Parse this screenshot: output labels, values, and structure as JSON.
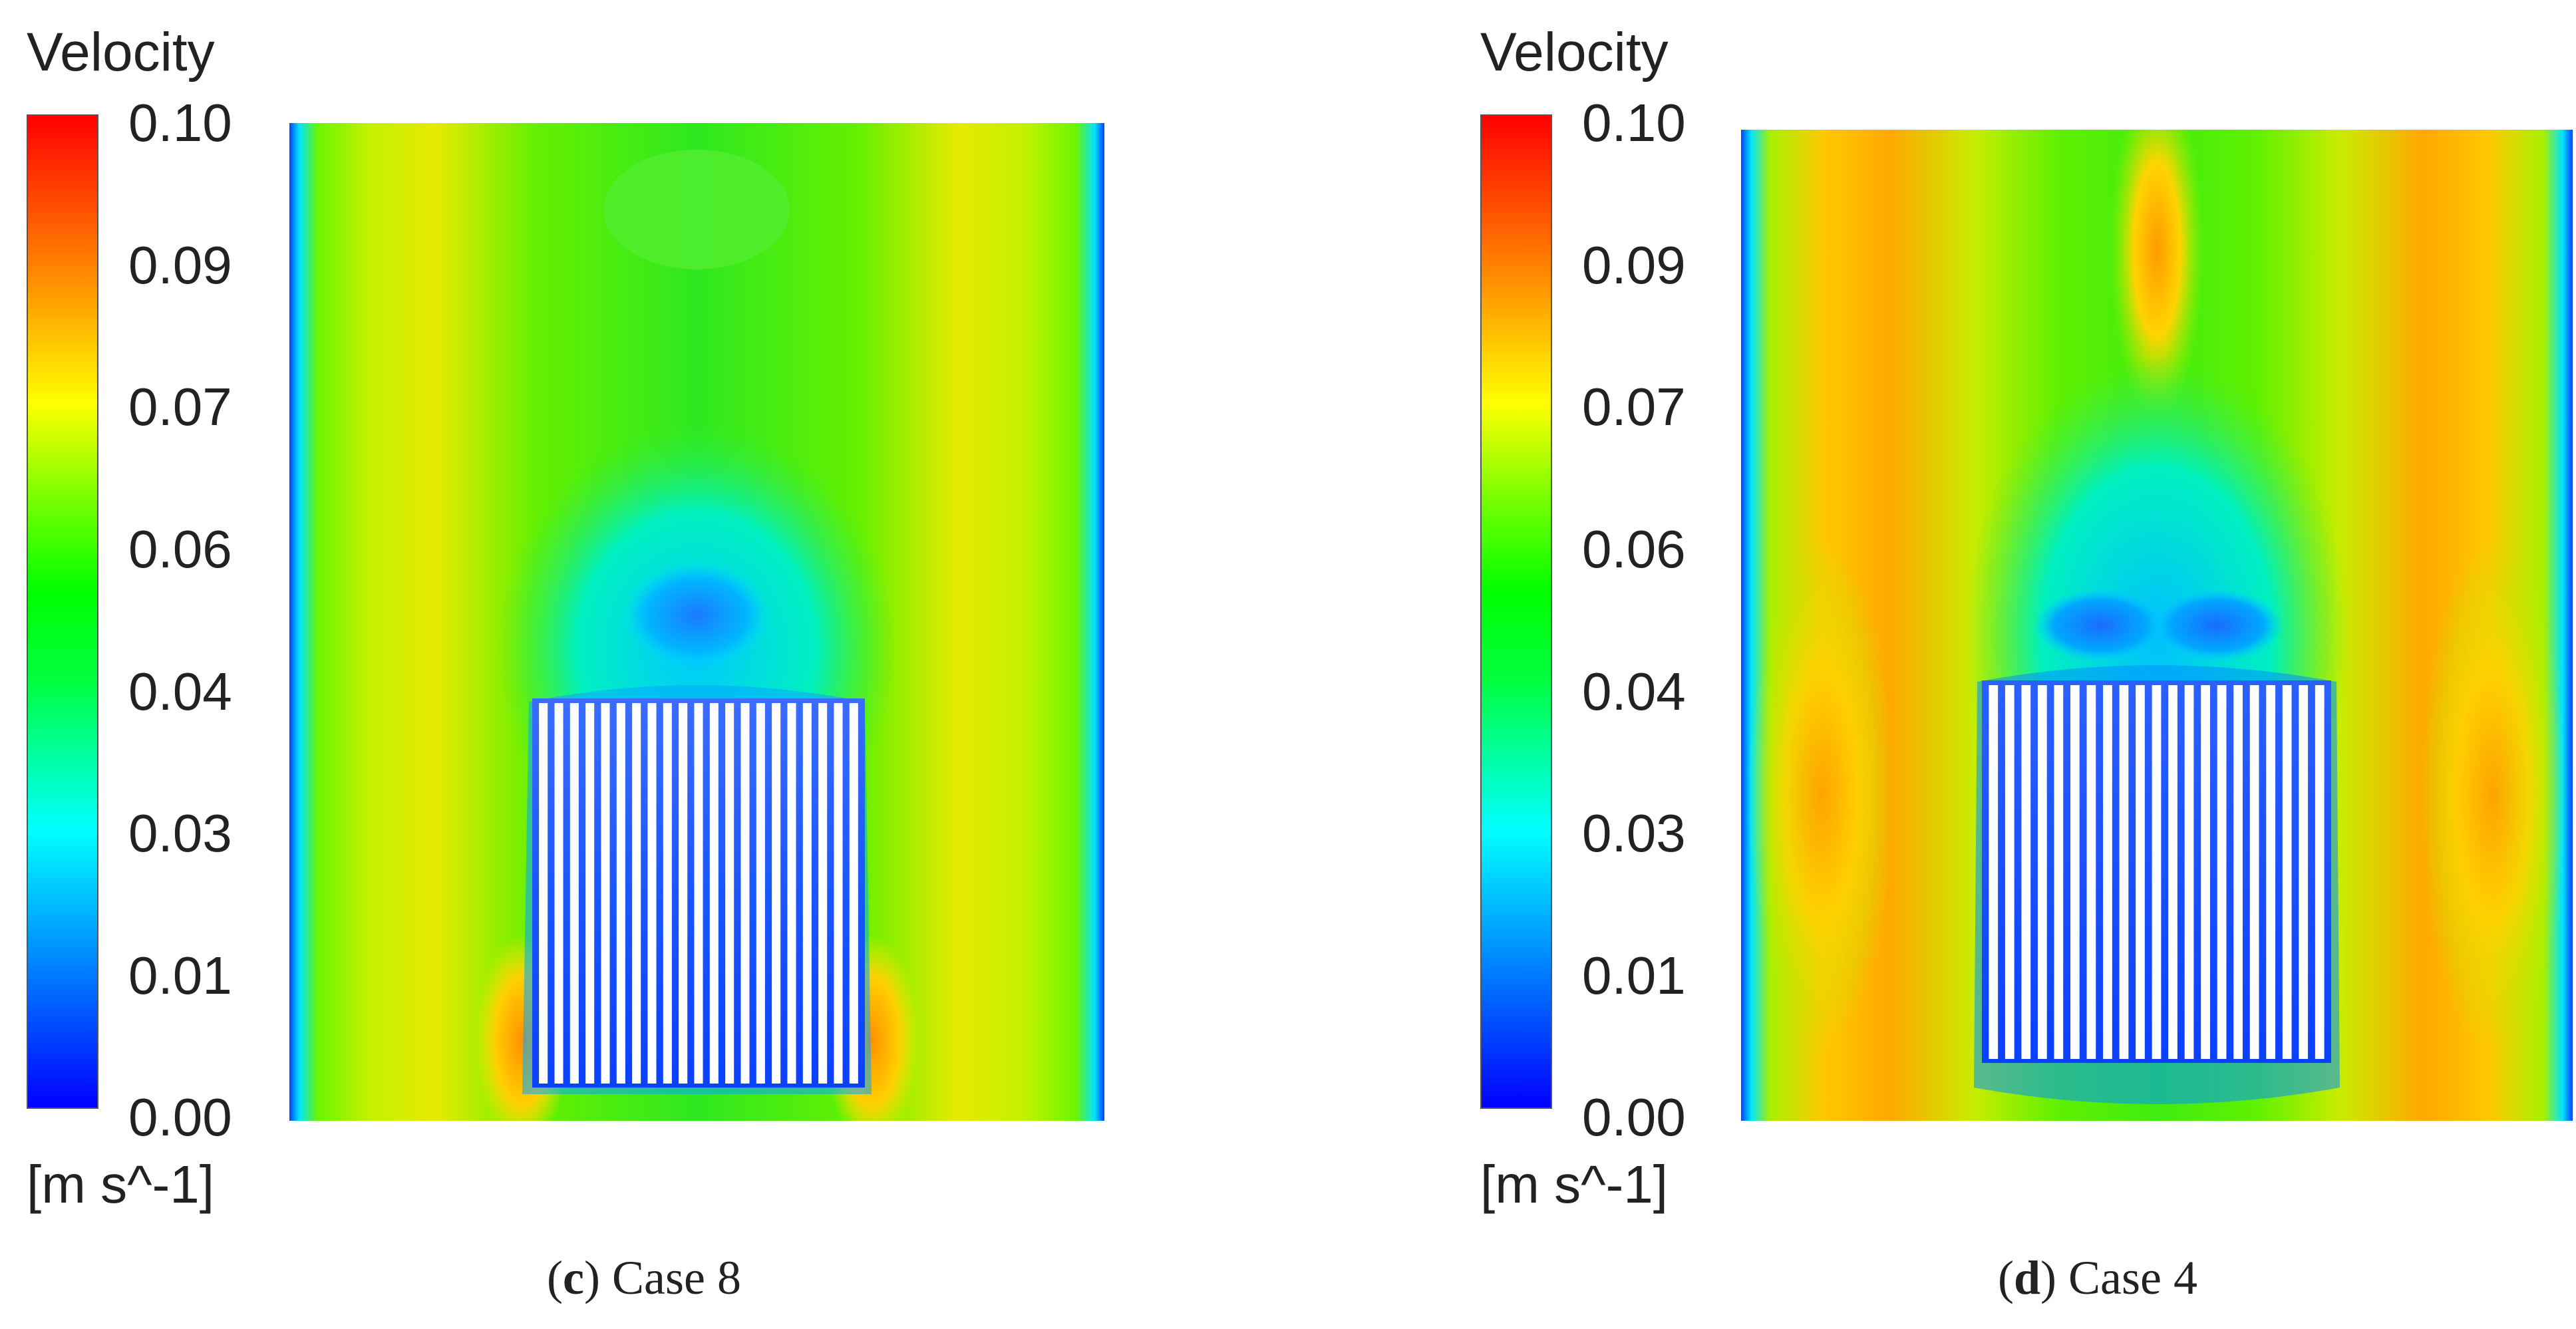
{
  "panels": [
    {
      "id": "c",
      "legend": {
        "title": "Velocity",
        "ticks": [
          "0.10",
          "0.09",
          "0.07",
          "0.06",
          "0.04",
          "0.03",
          "0.01",
          "0.00"
        ],
        "unit": "[m s^-1]"
      },
      "caption": {
        "letter": "c",
        "text": "Case 8"
      },
      "fins": 21
    },
    {
      "id": "d",
      "legend": {
        "title": "Velocity",
        "ticks": [
          "0.10",
          "0.09",
          "0.07",
          "0.06",
          "0.04",
          "0.03",
          "0.01",
          "0.00"
        ],
        "unit": "[m s^-1]"
      },
      "caption": {
        "letter": "d",
        "text": "Case 4"
      },
      "fins": 21
    }
  ]
}
